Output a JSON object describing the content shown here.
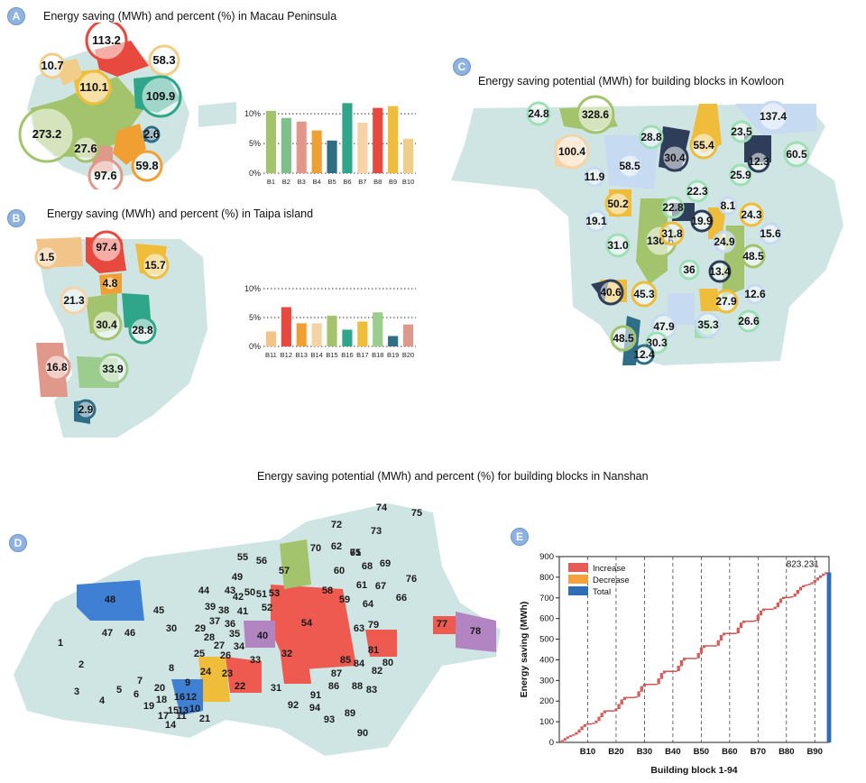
{
  "panels": {
    "A": {
      "letter": "A",
      "title": "Energy saving (MWh) and percent (%) in Macau Peninsula"
    },
    "B": {
      "letter": "B",
      "title": "Energy saving (MWh) and percent (%) in Taipa island"
    },
    "C": {
      "letter": "C",
      "title": "Energy saving potential (MWh) for building blocks in Kowloon"
    },
    "D": {
      "letter": "D",
      "title": "Energy saving potential (MWh) and percent (%) for building blocks in Nanshan"
    },
    "E": {
      "letter": "E"
    }
  },
  "map_labels": {
    "macau": [
      "113.2",
      "10.7",
      "58.3",
      "110.1",
      "109.9",
      "273.2",
      "2.6",
      "27.6",
      "59.8",
      "97.6"
    ],
    "taipa": [
      "1.5",
      "97.4",
      "15.7",
      "4.8",
      "21.3",
      "30.4",
      "28.8",
      "16.8",
      "33.9",
      "2.9"
    ],
    "kowloon": [
      "24.8",
      "328.6",
      "137.4",
      "28.8",
      "55.4",
      "23.5",
      "100.4",
      "30.4",
      "12.3",
      "60.5",
      "58.5",
      "25.9",
      "11.9",
      "22.3",
      "50.2",
      "22.8",
      "8.1",
      "19.1",
      "19.9",
      "24.3",
      "31.0",
      "130.6",
      "31.8",
      "24.9",
      "15.6",
      "36",
      "13.4",
      "48.5",
      "40.6",
      "45.3",
      "27.9",
      "12.6",
      "47.9",
      "35.3",
      "26.6",
      "48.5",
      "30.3",
      "12.4"
    ]
  },
  "chart_data": [
    {
      "type": "bar",
      "categories": [
        "B1",
        "B2",
        "B3",
        "B4",
        "B5",
        "B6",
        "B7",
        "B8",
        "B9",
        "B10"
      ],
      "values": [
        10.5,
        9.3,
        8.7,
        7.2,
        5.5,
        11.8,
        8.5,
        11.0,
        11.3,
        5.8
      ],
      "colors": [
        "#a3c46c",
        "#7fbf8a",
        "#e0988b",
        "#f0a032",
        "#2e6e86",
        "#2fa58a",
        "#f6d3a6",
        "#e8493f",
        "#f0bd3a",
        "#f2cd8a"
      ],
      "ylim": [
        0,
        12
      ],
      "yticks": [
        "0%",
        "5%",
        "10%"
      ],
      "grid": "dotted"
    },
    {
      "type": "bar",
      "categories": [
        "B11",
        "B12",
        "B13",
        "B14",
        "B15",
        "B16",
        "B17",
        "B18",
        "B19",
        "B20"
      ],
      "values": [
        2.6,
        6.8,
        4.0,
        4.0,
        5.3,
        2.9,
        4.3,
        5.9,
        1.8,
        3.8
      ],
      "colors": [
        "#f2c48a",
        "#e8493f",
        "#f0a032",
        "#f6d3a6",
        "#a3c46c",
        "#2fa58a",
        "#f0bd3a",
        "#9ccc8e",
        "#2e6e86",
        "#e0988b"
      ],
      "ylim": [
        0,
        10
      ],
      "yticks": [
        "0%",
        "5%",
        "10%"
      ],
      "grid": "dotted"
    },
    {
      "type": "bar",
      "title": "",
      "xlabel": "Building block 1-94",
      "ylabel": "Energy saving (MWh)",
      "ylim": [
        0,
        900
      ],
      "yticks": [
        0,
        100,
        200,
        300,
        400,
        500,
        600,
        700,
        800,
        900
      ],
      "xticks": [
        "B10",
        "B20",
        "B30",
        "B40",
        "B50",
        "B60",
        "B70",
        "B80",
        "B90"
      ],
      "annotation": "823.231",
      "legend": [
        "Increase",
        "Decrease",
        "Total"
      ],
      "legend_colors": [
        "#e45b57",
        "#f5a23c",
        "#2f6eb5"
      ],
      "legend_placement": "top-left",
      "total": 823.231,
      "n_blocks": 94
    }
  ],
  "nanshan_labels": [
    "1",
    "2",
    "3",
    "4",
    "5",
    "6",
    "7",
    "8",
    "9",
    "10",
    "11",
    "12",
    "13",
    "14",
    "15",
    "16",
    "17",
    "18",
    "19",
    "20",
    "21",
    "22",
    "23",
    "24",
    "25",
    "26",
    "27",
    "28",
    "29",
    "30",
    "31",
    "32",
    "33",
    "34",
    "35",
    "36",
    "37",
    "38",
    "39",
    "40",
    "41",
    "42",
    "43",
    "44",
    "45",
    "46",
    "47",
    "48",
    "49",
    "50",
    "51",
    "52",
    "53",
    "54",
    "55",
    "56",
    "57",
    "58",
    "59",
    "60",
    "61",
    "62",
    "63",
    "64",
    "65",
    "66",
    "67",
    "68",
    "69",
    "70",
    "71",
    "72",
    "73",
    "74",
    "75",
    "76",
    "77",
    "78",
    "79",
    "80",
    "81",
    "82",
    "83",
    "84",
    "85",
    "86",
    "87",
    "88",
    "89",
    "90",
    "91",
    "92",
    "93",
    "94"
  ]
}
